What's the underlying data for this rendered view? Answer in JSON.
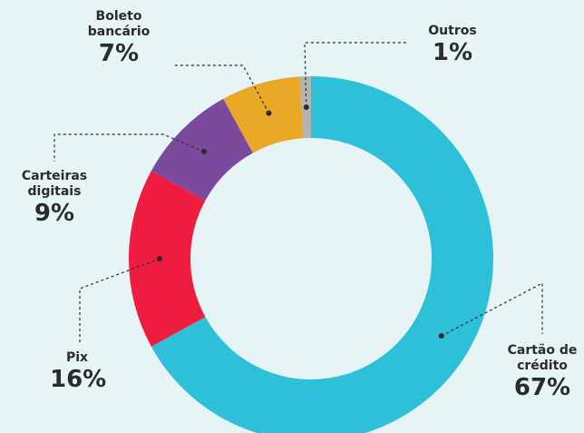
{
  "chart_data": {
    "type": "donut",
    "categories": [
      "Cartão de crédito",
      "Pix",
      "Carteiras digitais",
      "Boleto bancário",
      "Outros"
    ],
    "values": [
      67,
      16,
      9,
      7,
      1
    ],
    "value_labels": [
      "67%",
      "16%",
      "9%",
      "7%",
      "1%"
    ],
    "colors": [
      "#2ec0d9",
      "#ee1c3e",
      "#7b4a9c",
      "#e9a825",
      "#b3b3b3"
    ]
  }
}
